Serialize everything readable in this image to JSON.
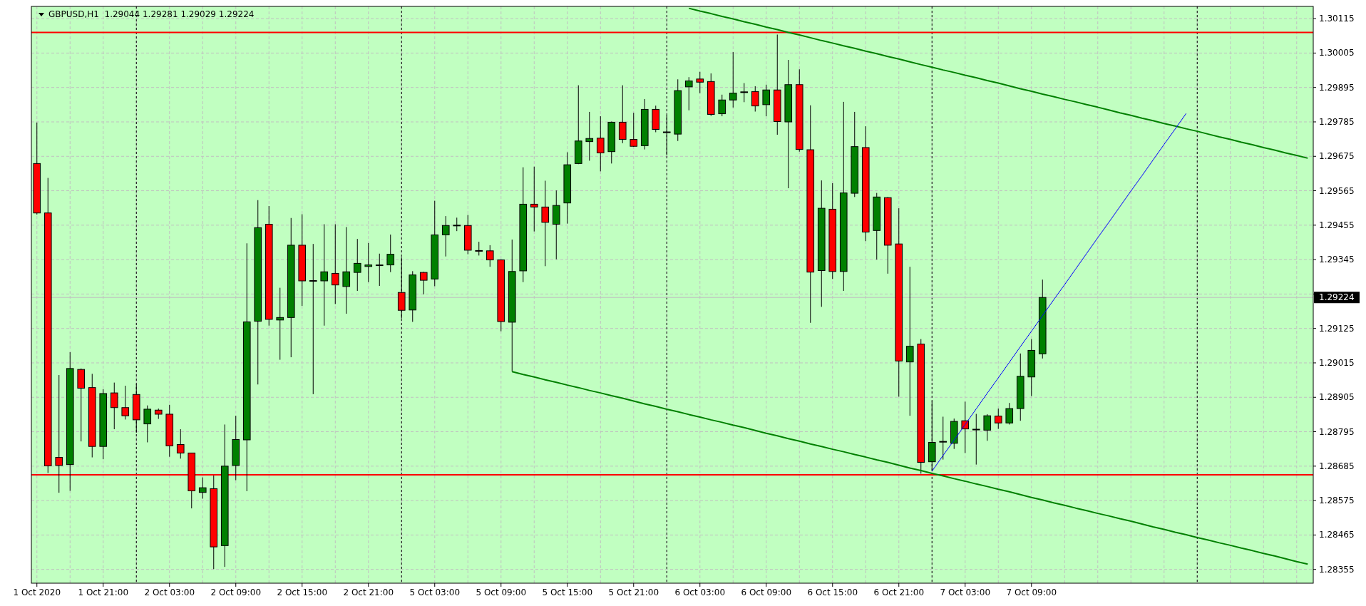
{
  "chart_data": {
    "type": "candlestick",
    "title": "GBPUSD,H1  1.29044 1.29281 1.29029 1.29224",
    "categories": [
      "1 Oct 2020",
      null,
      null,
      null,
      null,
      null,
      "1 Oct 21:00",
      null,
      null,
      null,
      null,
      null,
      "2 Oct 03:00",
      null,
      null,
      null,
      null,
      null,
      "2 Oct 09:00",
      null,
      null,
      null,
      null,
      null,
      "2 Oct 15:00",
      null,
      null,
      null,
      null,
      null,
      "2 Oct 21:00",
      null,
      null,
      null,
      null,
      null,
      "5 Oct 03:00",
      null,
      null,
      null,
      null,
      null,
      "5 Oct 09:00",
      null,
      null,
      null,
      null,
      null,
      "5 Oct 15:00",
      null,
      null,
      null,
      null,
      null,
      "5 Oct 21:00",
      null,
      null,
      null,
      null,
      null,
      "6 Oct 03:00",
      null,
      null,
      null,
      null,
      null,
      "6 Oct 09:00",
      null,
      null,
      null,
      null,
      null,
      "6 Oct 15:00",
      null,
      null,
      null,
      null,
      null,
      "6 Oct 21:00",
      null,
      null,
      null,
      null,
      null,
      "7 Oct 03:00",
      null,
      null,
      null,
      null,
      null,
      "7 Oct 09:00",
      null,
      null,
      null,
      null,
      null,
      null,
      null,
      null,
      null,
      null,
      null,
      null,
      null,
      null,
      null,
      null,
      null,
      null,
      null,
      null,
      null,
      null,
      null,
      null,
      null
    ],
    "ohlc": [
      [
        1.29652,
        1.29783,
        1.29489,
        1.29494
      ],
      [
        1.29494,
        1.29606,
        1.28663,
        1.28686
      ],
      [
        1.28713,
        1.28976,
        1.286,
        1.28687
      ],
      [
        1.2869,
        1.29049,
        1.28606,
        1.28997
      ],
      [
        1.28994,
        1.28997,
        1.28764,
        1.28934
      ],
      [
        1.28936,
        1.2898,
        1.28713,
        1.28748
      ],
      [
        1.28748,
        1.28931,
        1.28707,
        1.28917
      ],
      [
        1.28919,
        1.28952,
        1.28803,
        1.28872
      ],
      [
        1.28872,
        1.28942,
        1.28834,
        1.28846
      ],
      [
        1.28914,
        1.28946,
        1.28792,
        1.28833
      ],
      [
        1.2882,
        1.28879,
        1.28761,
        1.28867
      ],
      [
        1.28864,
        1.28869,
        1.28836,
        1.28851
      ],
      [
        1.28851,
        1.28881,
        1.28715,
        1.2875
      ],
      [
        1.28754,
        1.28803,
        1.28709,
        1.28727
      ],
      [
        1.28727,
        1.28727,
        1.2855,
        1.28606
      ],
      [
        1.28601,
        1.28649,
        1.28581,
        1.28616
      ],
      [
        1.28613,
        1.28655,
        1.28356,
        1.28427
      ],
      [
        1.28431,
        1.28818,
        1.28363,
        1.28685
      ],
      [
        1.28687,
        1.28846,
        1.2864,
        1.2877
      ],
      [
        1.28769,
        1.29397,
        1.28605,
        1.29146
      ],
      [
        1.29148,
        1.29535,
        1.28946,
        1.29447
      ],
      [
        1.29458,
        1.29516,
        1.29134,
        1.29154
      ],
      [
        1.29152,
        1.29255,
        1.29025,
        1.2916
      ],
      [
        1.2916,
        1.29478,
        1.29033,
        1.29391
      ],
      [
        1.29391,
        1.2949,
        1.29197,
        1.29277
      ],
      [
        1.29278,
        1.29395,
        1.28915,
        1.29277
      ],
      [
        1.29277,
        1.29458,
        1.29134,
        1.29306
      ],
      [
        1.29301,
        1.29458,
        1.29203,
        1.29264
      ],
      [
        1.29259,
        1.29449,
        1.29172,
        1.29306
      ],
      [
        1.29304,
        1.29411,
        1.29245,
        1.29333
      ],
      [
        1.29323,
        1.29398,
        1.29273,
        1.29328
      ],
      [
        1.29327,
        1.29364,
        1.29261,
        1.29328
      ],
      [
        1.29328,
        1.29425,
        1.29305,
        1.29362
      ],
      [
        1.2924,
        1.29352,
        1.29157,
        1.29183
      ],
      [
        1.29184,
        1.29308,
        1.29146,
        1.29296
      ],
      [
        1.29304,
        1.29306,
        1.29234,
        1.29279
      ],
      [
        1.29283,
        1.29533,
        1.2926,
        1.29424
      ],
      [
        1.29424,
        1.29484,
        1.29355,
        1.29454
      ],
      [
        1.29454,
        1.29479,
        1.29436,
        1.29455
      ],
      [
        1.29454,
        1.29488,
        1.29362,
        1.29375
      ],
      [
        1.29374,
        1.29402,
        1.29358,
        1.29373
      ],
      [
        1.29373,
        1.29391,
        1.29322,
        1.29344
      ],
      [
        1.29344,
        1.29346,
        1.29116,
        1.29147
      ],
      [
        1.29145,
        1.29409,
        1.28987,
        1.29307
      ],
      [
        1.29309,
        1.2964,
        1.29273,
        1.29522
      ],
      [
        1.29522,
        1.29642,
        1.29435,
        1.29513
      ],
      [
        1.29513,
        1.29597,
        1.29324,
        1.29464
      ],
      [
        1.29458,
        1.29566,
        1.29346,
        1.29518
      ],
      [
        1.29526,
        1.29688,
        1.2946,
        1.29648
      ],
      [
        1.29652,
        1.29902,
        1.2965,
        1.29724
      ],
      [
        1.29722,
        1.29817,
        1.29661,
        1.29732
      ],
      [
        1.29733,
        1.29803,
        1.29627,
        1.29686
      ],
      [
        1.2969,
        1.29786,
        1.29652,
        1.29784
      ],
      [
        1.29784,
        1.29902,
        1.29717,
        1.29729
      ],
      [
        1.29729,
        1.29814,
        1.29705,
        1.29707
      ],
      [
        1.29709,
        1.29858,
        1.29697,
        1.29825
      ],
      [
        1.29825,
        1.29837,
        1.29752,
        1.29761
      ],
      [
        1.29753,
        1.29807,
        1.29678,
        1.29751
      ],
      [
        1.29746,
        1.29921,
        1.29724,
        1.29885
      ],
      [
        1.29897,
        1.29928,
        1.29822,
        1.29916
      ],
      [
        1.29922,
        1.29945,
        1.29877,
        1.29912
      ],
      [
        1.29914,
        1.2994,
        1.29804,
        1.29809
      ],
      [
        1.29811,
        1.29872,
        1.29803,
        1.29855
      ],
      [
        1.29855,
        1.30008,
        1.29831,
        1.29877
      ],
      [
        1.2988,
        1.29909,
        1.29848,
        1.29881
      ],
      [
        1.29882,
        1.29899,
        1.29818,
        1.29836
      ],
      [
        1.2984,
        1.29904,
        1.29803,
        1.29887
      ],
      [
        1.29887,
        1.30064,
        1.29744,
        1.29786
      ],
      [
        1.29785,
        1.29983,
        1.29573,
        1.29904
      ],
      [
        1.29904,
        1.29953,
        1.2969,
        1.29697
      ],
      [
        1.29696,
        1.29838,
        1.29143,
        1.29305
      ],
      [
        1.2931,
        1.29598,
        1.29194,
        1.29509
      ],
      [
        1.29506,
        1.29589,
        1.29283,
        1.29307
      ],
      [
        1.29307,
        1.29849,
        1.29245,
        1.29558
      ],
      [
        1.29557,
        1.29817,
        1.29545,
        1.29706
      ],
      [
        1.29703,
        1.29771,
        1.29404,
        1.29433
      ],
      [
        1.29438,
        1.29558,
        1.29345,
        1.29545
      ],
      [
        1.29543,
        1.29545,
        1.293,
        1.29391
      ],
      [
        1.29395,
        1.29509,
        1.28907,
        1.29021
      ],
      [
        1.29018,
        1.29322,
        1.28846,
        1.29068
      ],
      [
        1.29075,
        1.29091,
        1.28661,
        1.28697
      ],
      [
        1.28699,
        1.28891,
        1.28669,
        1.28761
      ],
      [
        1.28762,
        1.28843,
        1.28706,
        1.28764
      ],
      [
        1.28758,
        1.28837,
        1.2874,
        1.28828
      ],
      [
        1.2883,
        1.28891,
        1.28727,
        1.28804
      ],
      [
        1.28803,
        1.28852,
        1.2869,
        1.28802
      ],
      [
        1.288,
        1.28851,
        1.28766,
        1.28846
      ],
      [
        1.28845,
        1.28869,
        1.28804,
        1.28823
      ],
      [
        1.28823,
        1.28887,
        1.28818,
        1.28869
      ],
      [
        1.28869,
        1.29045,
        1.2883,
        1.28972
      ],
      [
        1.2897,
        1.29091,
        1.28909,
        1.29055
      ],
      [
        1.29044,
        1.29281,
        1.29029,
        1.29224
      ],
      null,
      null,
      null,
      null,
      null,
      null,
      null,
      null,
      null,
      null,
      null,
      null,
      null,
      null,
      null,
      null,
      null,
      null,
      null,
      null,
      null,
      null,
      null,
      null
    ],
    "colors": [
      "#ff0000",
      "#ff0000",
      "#ff0000",
      "#008000",
      "#ff0000",
      "#ff0000",
      "#008000",
      "#ff0000",
      "#ff0000",
      "#ff0000",
      "#008000",
      "#ff0000",
      "#ff0000",
      "#ff0000",
      "#ff0000",
      "#008000",
      "#ff0000",
      "#008000",
      "#008000",
      "#008000",
      "#008000",
      "#ff0000",
      "#008000",
      "#008000",
      "#ff0000",
      "#ff0000",
      "#008000",
      "#ff0000",
      "#008000",
      "#008000",
      "#008000",
      "#008000",
      "#008000",
      "#ff0000",
      "#008000",
      "#ff0000",
      "#008000",
      "#008000",
      "#008000",
      "#ff0000",
      "#ff0000",
      "#ff0000",
      "#ff0000",
      "#008000",
      "#008000",
      "#ff0000",
      "#ff0000",
      "#008000",
      "#008000",
      "#008000",
      "#008000",
      "#ff0000",
      "#008000",
      "#ff0000",
      "#ff0000",
      "#008000",
      "#ff0000",
      "#ff0000",
      "#008000",
      "#008000",
      "#ff0000",
      "#ff0000",
      "#008000",
      "#008000",
      "#008000",
      "#ff0000",
      "#008000",
      "#ff0000",
      "#008000",
      "#ff0000",
      "#ff0000",
      "#008000",
      "#ff0000",
      "#008000",
      "#008000",
      "#ff0000",
      "#008000",
      "#ff0000",
      "#ff0000",
      "#008000",
      "#ff0000",
      "#008000",
      "#008000",
      "#008000",
      "#ff0000",
      "#ff0000",
      "#008000",
      "#ff0000",
      "#008000",
      "#008000",
      "#008000",
      "#008000",
      null,
      null,
      null,
      null,
      null,
      null,
      null,
      null,
      null,
      null,
      null,
      null,
      null,
      null,
      null,
      null,
      null,
      null,
      null,
      null,
      null,
      null,
      null,
      null
    ],
    "series": [
      {
        "type": "line",
        "color": "#008000",
        "values": [
          null,
          null,
          null,
          null,
          null,
          null,
          null,
          null,
          null,
          null,
          null,
          null,
          null,
          null,
          null,
          null,
          null,
          null,
          null,
          null,
          null,
          null,
          null,
          null,
          null,
          null,
          null,
          null,
          null,
          null,
          null,
          null,
          null,
          null,
          null,
          null,
          null,
          null,
          null,
          null,
          null,
          null,
          null,
          null,
          null,
          null,
          null,
          null,
          null,
          null,
          null,
          null,
          null,
          null,
          null,
          null,
          null,
          null,
          null,
          1.30148,
          1.30139,
          1.30131,
          1.30122,
          1.30114,
          1.30105,
          1.30097,
          1.30088,
          1.3008,
          1.30071,
          1.30063,
          1.30054,
          1.30045,
          1.30037,
          1.30028,
          1.3002,
          1.30011,
          1.30003,
          1.29994,
          1.29986,
          1.29977,
          1.29968,
          1.2996,
          1.29951,
          1.29943,
          1.29934,
          1.29926,
          1.29917,
          1.29909,
          1.299,
          1.29891,
          1.29883,
          1.29874,
          1.29866,
          1.29857,
          1.29849,
          1.2984,
          1.29832,
          1.29823,
          1.29814,
          1.29806,
          1.29797,
          1.29789,
          1.2978,
          1.29772,
          1.29763,
          1.29755,
          1.29746,
          1.29737,
          1.29729,
          1.2972,
          1.29712,
          1.29703,
          1.29695,
          1.29686,
          1.29678,
          1.29669
        ]
      },
      {
        "type": "line",
        "color": "#008000",
        "values": [
          null,
          null,
          null,
          null,
          null,
          null,
          null,
          null,
          null,
          null,
          null,
          null,
          null,
          null,
          null,
          null,
          null,
          null,
          null,
          null,
          null,
          null,
          null,
          null,
          null,
          null,
          null,
          null,
          null,
          null,
          null,
          null,
          null,
          null,
          null,
          null,
          null,
          null,
          null,
          null,
          null,
          null,
          null,
          1.28987,
          1.28978,
          1.2897,
          1.28961,
          1.28953,
          1.28944,
          1.28936,
          1.28927,
          1.28919,
          1.2891,
          1.28902,
          1.28893,
          1.28884,
          1.28876,
          1.28867,
          1.28859,
          1.2885,
          1.28842,
          1.28833,
          1.28825,
          1.28816,
          1.28808,
          1.28799,
          1.2879,
          1.28782,
          1.28773,
          1.28765,
          1.28756,
          1.28748,
          1.28739,
          1.28731,
          1.28722,
          1.28714,
          1.28705,
          1.28697,
          1.28688,
          1.28679,
          1.28671,
          1.28662,
          1.28654,
          1.28645,
          1.28637,
          1.28628,
          1.2862,
          1.28611,
          1.28603,
          1.28594,
          1.28585,
          1.28577,
          1.28568,
          1.2856,
          1.28551,
          1.28543,
          1.28534,
          1.28526,
          1.28517,
          1.28509,
          1.285,
          1.28491,
          1.28483,
          1.28474,
          1.28466,
          1.28457,
          1.28449,
          1.2844,
          1.28432,
          1.28423,
          1.28415,
          1.28406,
          1.28398,
          1.28389,
          1.2838,
          1.28372
        ]
      },
      {
        "type": "line",
        "color": "#0000ff",
        "values": [
          null,
          null,
          null,
          null,
          null,
          null,
          null,
          null,
          null,
          null,
          null,
          null,
          null,
          null,
          null,
          null,
          null,
          null,
          null,
          null,
          null,
          null,
          null,
          null,
          null,
          null,
          null,
          null,
          null,
          null,
          null,
          null,
          null,
          null,
          null,
          null,
          null,
          null,
          null,
          null,
          null,
          null,
          null,
          null,
          null,
          null,
          null,
          null,
          null,
          null,
          null,
          null,
          null,
          null,
          null,
          null,
          null,
          null,
          null,
          null,
          null,
          null,
          null,
          null,
          null,
          null,
          null,
          null,
          null,
          null,
          null,
          null,
          null,
          null,
          null,
          null,
          null,
          null,
          null,
          null,
          null,
          1.28669,
          1.28719,
          1.28768,
          1.28818,
          1.28868,
          1.28918,
          1.28967,
          1.29017,
          1.29067,
          1.29116,
          1.29166,
          1.29216,
          1.29265,
          1.29315,
          1.29365,
          1.29415,
          1.29464,
          1.29514,
          1.29564,
          1.29613,
          1.29663,
          1.29713,
          1.29762,
          1.29812,
          null,
          null,
          null,
          null,
          null,
          null,
          null,
          null,
          null,
          null,
          null
        ]
      }
    ],
    "ylim": [
      1.28311,
      1.30154
    ],
    "yticks": [
      1.28355,
      1.28465,
      1.28575,
      1.28685,
      1.28795,
      1.28905,
      1.29015,
      1.29125,
      {
        "value": 1.29235,
        "label": null
      },
      1.29345,
      1.29455,
      1.29565,
      1.29675,
      1.29785,
      1.29895,
      1.30005,
      1.30115
    ],
    "ref_lines": [
      {
        "axis": "y",
        "value": 1.30071,
        "color": "#ff0000"
      },
      {
        "axis": "y",
        "value": 1.28657,
        "color": "#ff0000"
      },
      {
        "axis": "y",
        "value": 1.29224,
        "label": "1.29224",
        "color": "#c0c0c0"
      }
    ],
    "grid": true
  }
}
